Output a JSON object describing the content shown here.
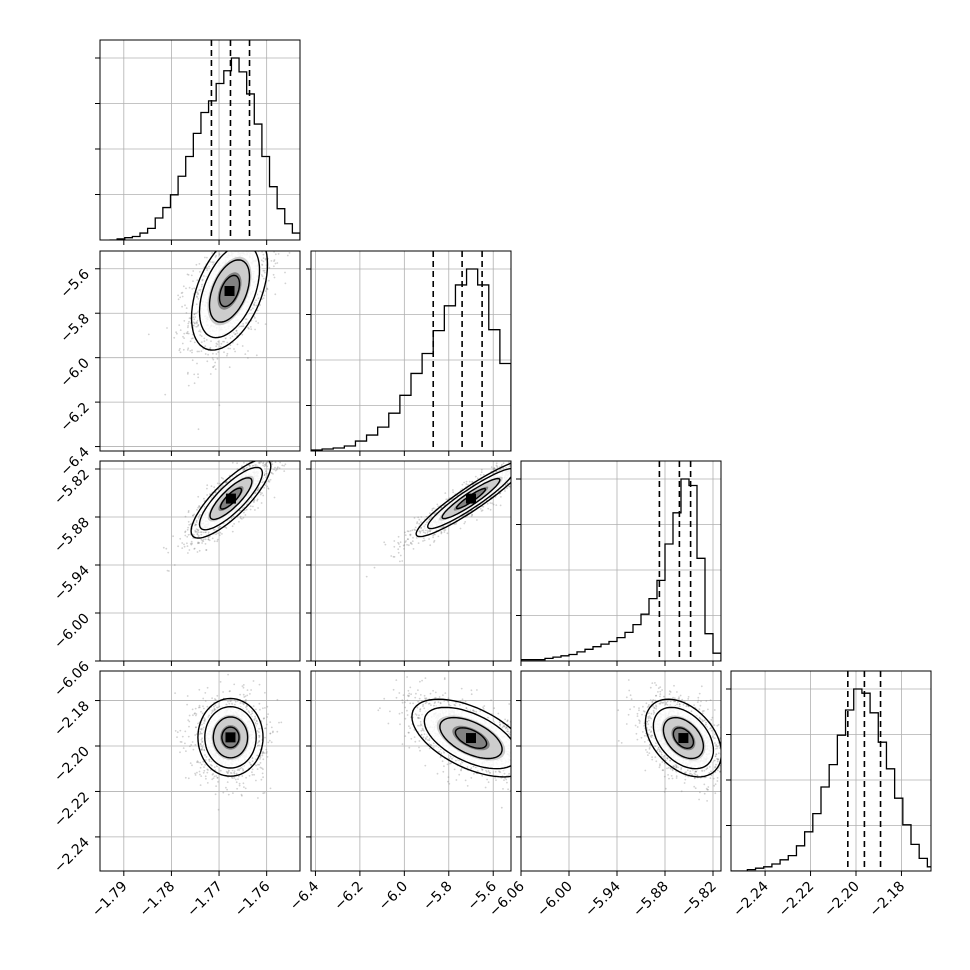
{
  "chart_data": {
    "type": "corner",
    "grid": true,
    "parameters": [
      {
        "range": [
          -1.795,
          -1.753
        ],
        "ticks": [
          -1.79,
          -1.78,
          -1.77,
          -1.76
        ],
        "tick_labels": [
          "−1.79",
          "−1.78",
          "−1.77",
          "−1.76"
        ],
        "quantiles": [
          -1.7716,
          -1.7676,
          -1.7636
        ]
      },
      {
        "range": [
          -6.42,
          -5.52
        ],
        "ticks": [
          -6.4,
          -6.2,
          -6.0,
          -5.8,
          -5.6
        ],
        "tick_labels": [
          "−6.4",
          "−6.2",
          "−6.0",
          "−5.8",
          "−5.6"
        ],
        "quantiles": [
          -5.87,
          -5.74,
          -5.65
        ]
      },
      {
        "range": [
          -6.06,
          -5.81
        ],
        "ticks": [
          -6.06,
          -6.0,
          -5.94,
          -5.88,
          -5.82
        ],
        "tick_labels": [
          "−6.06",
          "−6.00",
          "−5.94",
          "−5.88",
          "−5.82"
        ],
        "quantiles": [
          -5.887,
          -5.862,
          -5.848
        ]
      },
      {
        "range": [
          -2.255,
          -2.167
        ],
        "ticks": [
          -2.24,
          -2.22,
          -2.2,
          -2.18
        ],
        "tick_labels": [
          "−2.24",
          "−2.22",
          "−2.20",
          "−2.18"
        ],
        "quantiles": [
          -2.2036,
          -2.1963,
          -2.1892
        ]
      }
    ],
    "histograms": [
      {
        "edges": [
          -1.793,
          -1.7914,
          -1.7898,
          -1.7882,
          -1.7866,
          -1.785,
          -1.7834,
          -1.7818,
          -1.7802,
          -1.7786,
          -1.777,
          -1.7754,
          -1.7738,
          -1.7722,
          -1.7706,
          -1.769,
          -1.7674,
          -1.7658,
          -1.7642,
          -1.7626,
          -1.761,
          -1.7594,
          -1.7578,
          -1.7562,
          -1.7546,
          -1.753
        ],
        "counts": [
          0,
          1,
          2,
          3,
          6,
          10,
          19,
          28,
          39,
          55,
          72,
          92,
          110,
          120,
          135,
          146,
          157,
          145,
          126,
          100,
          72,
          46,
          27,
          14,
          6
        ]
      },
      {
        "edges": [
          -6.42,
          -6.37,
          -6.32,
          -6.27,
          -6.22,
          -6.17,
          -6.12,
          -6.07,
          -6.02,
          -5.97,
          -5.92,
          -5.87,
          -5.82,
          -5.77,
          -5.72,
          -5.67,
          -5.62,
          -5.57,
          -5.52
        ],
        "counts": [
          1,
          2,
          3,
          5,
          10,
          16,
          24,
          38,
          56,
          78,
          98,
          121,
          146,
          167,
          183,
          167,
          122,
          88
        ]
      },
      {
        "edges": [
          -6.06,
          -6.05,
          -6.04,
          -6.03,
          -6.02,
          -6.01,
          -6.0,
          -5.99,
          -5.98,
          -5.97,
          -5.96,
          -5.95,
          -5.94,
          -5.93,
          -5.92,
          -5.91,
          -5.9,
          -5.89,
          -5.88,
          -5.87,
          -5.86,
          -5.85,
          -5.84,
          -5.83,
          -5.82,
          -5.81
        ],
        "counts": [
          1,
          1,
          1,
          2,
          3,
          4,
          5,
          7,
          9,
          11,
          13,
          15,
          18,
          22,
          28,
          36,
          48,
          62,
          90,
          114,
          140,
          135,
          79,
          21,
          6
        ]
      },
      {
        "edges": [
          -2.255,
          -2.2514,
          -2.2478,
          -2.2442,
          -2.2406,
          -2.237,
          -2.2334,
          -2.2298,
          -2.2262,
          -2.2226,
          -2.219,
          -2.2154,
          -2.2118,
          -2.2082,
          -2.2046,
          -2.201,
          -2.1974,
          -2.1938,
          -2.1902,
          -2.1866,
          -2.183,
          -2.1794,
          -2.1758,
          -2.1722,
          -2.1686,
          -2.165
        ],
        "counts": [
          0,
          0,
          1,
          2,
          3,
          5,
          8,
          11,
          18,
          28,
          41,
          60,
          76,
          97,
          115,
          130,
          127,
          113,
          92,
          73,
          52,
          33,
          19,
          9,
          3
        ]
      }
    ],
    "contour_panels": [
      {
        "x": 0,
        "y": 1,
        "center": [
          -1.7678,
          -5.7
        ],
        "spread": [
          0.0042,
          0.14
        ],
        "corr": 0.45,
        "scatter_points": 1400
      },
      {
        "x": 0,
        "y": 2,
        "center": [
          -1.7675,
          -5.857
        ],
        "spread": [
          0.0044,
          0.026
        ],
        "corr": 0.82,
        "scatter_points": 1300
      },
      {
        "x": 1,
        "y": 2,
        "center": [
          -5.7,
          -5.857
        ],
        "spread": [
          0.13,
          0.025
        ],
        "corr": 0.93,
        "scatter_points": 1300
      },
      {
        "x": 0,
        "y": 3,
        "center": [
          -1.7676,
          -2.1962
        ],
        "spread": [
          0.0036,
          0.009
        ],
        "corr": 0.0,
        "scatter_points": 1300
      },
      {
        "x": 1,
        "y": 3,
        "center": [
          -5.7,
          -2.1965
        ],
        "spread": [
          0.14,
          0.009
        ],
        "corr": -0.55,
        "scatter_points": 1400
      },
      {
        "x": 2,
        "y": 3,
        "center": [
          -5.857,
          -2.1965
        ],
        "spread": [
          0.025,
          0.009
        ],
        "corr": -0.4,
        "scatter_points": 1400
      }
    ],
    "colors": {
      "line": "#000000",
      "scatter": "#7f7f7f",
      "grid": "#b0b0b0",
      "fill": "#000000"
    }
  }
}
